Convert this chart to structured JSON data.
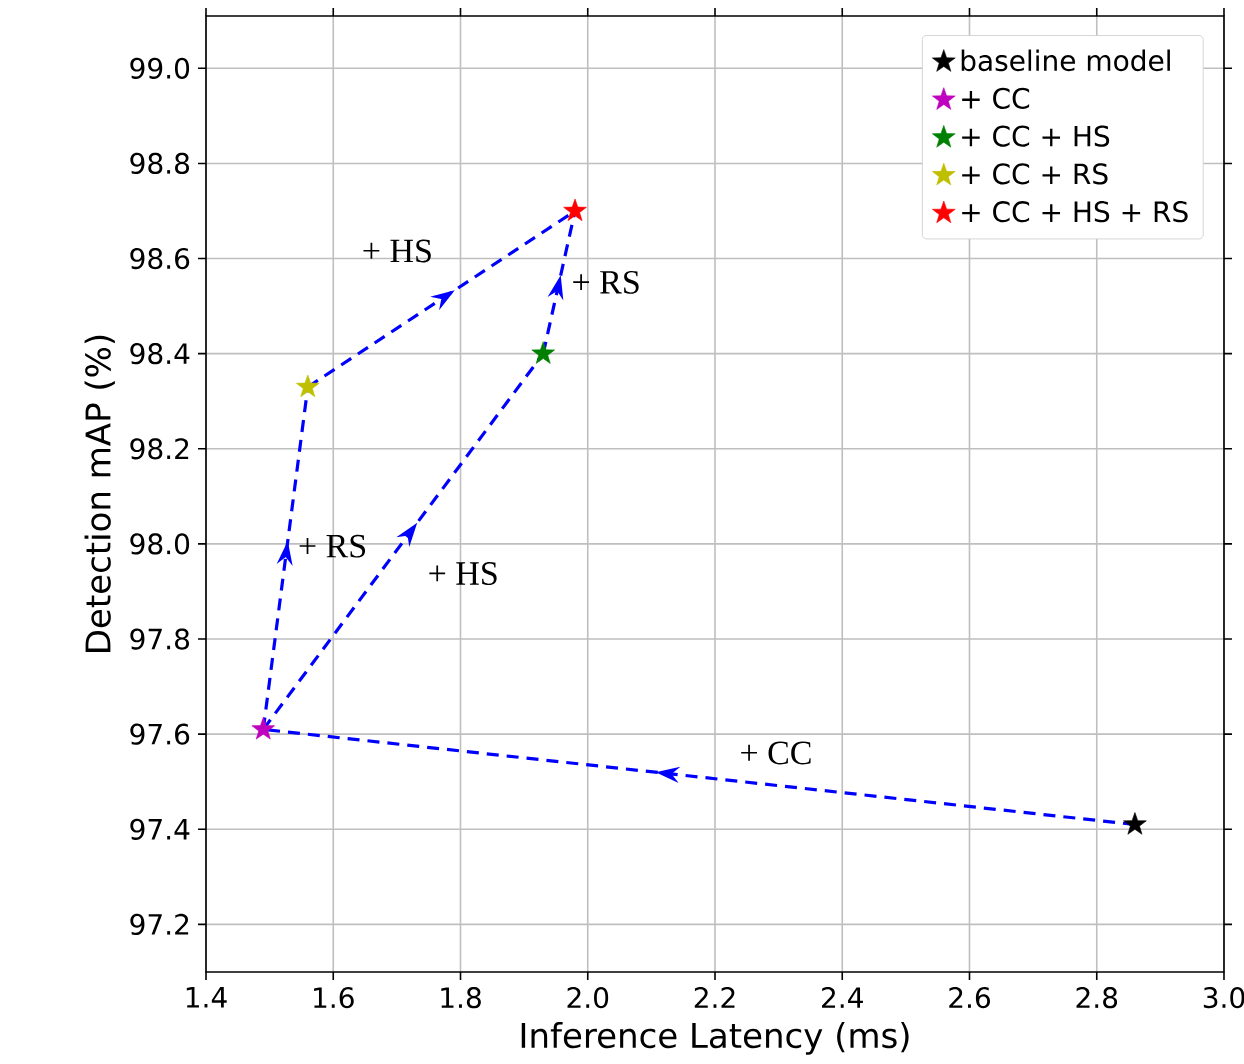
{
  "chart_data": {
    "type": "scatter",
    "xlabel": "Inference Latency (ms)",
    "ylabel": "Detection mAP (%)",
    "xlim": [
      1.4,
      3.0
    ],
    "ylim": [
      97.1,
      99.11
    ],
    "xticks": [
      1.4,
      1.6,
      1.8,
      {
        "value": 2,
        "label": "2.0"
      },
      2.2,
      2.4,
      2.6,
      2.8,
      {
        "value": 3,
        "label": "3.0"
      }
    ],
    "yticks": [
      97.2,
      97.4,
      97.6,
      97.8,
      {
        "value": 98,
        "label": "98.0"
      },
      98.2,
      98.4,
      98.6,
      98.8,
      {
        "value": 99,
        "label": "99.0"
      }
    ],
    "grid": true,
    "legend": "top right",
    "marker": "star",
    "series": [
      {
        "type": "line",
        "color": "#0000ff",
        "line_style": "dashed",
        "marker": "none",
        "x": [
          2.86,
          1.49
        ],
        "values": [
          97.41,
          97.61
        ]
      },
      {
        "type": "line",
        "color": "#0000ff",
        "line_style": "dashed",
        "marker": "none",
        "x": [
          1.49,
          1.93
        ],
        "values": [
          97.61,
          98.4
        ]
      },
      {
        "type": "line",
        "color": "#0000ff",
        "line_style": "dashed",
        "marker": "none",
        "x": [
          1.49,
          1.56
        ],
        "values": [
          97.61,
          98.33
        ]
      },
      {
        "type": "line",
        "color": "#0000ff",
        "line_style": "dashed",
        "marker": "none",
        "x": [
          1.56,
          1.98
        ],
        "values": [
          98.33,
          98.7
        ]
      },
      {
        "type": "line",
        "color": "#0000ff",
        "line_style": "dashed",
        "marker": "none",
        "x": [
          1.93,
          1.98
        ],
        "values": [
          98.4,
          98.7
        ]
      },
      {
        "name": "baseline model",
        "color": "#000000",
        "x": [
          2.86
        ],
        "values": [
          97.41
        ]
      },
      {
        "name": "+ CC",
        "color": "#bf00bf",
        "x": [
          1.49
        ],
        "values": [
          97.61
        ]
      },
      {
        "name": "+ CC + HS",
        "color": "#008000",
        "x": [
          1.93
        ],
        "values": [
          98.4
        ]
      },
      {
        "name": "+ CC + RS",
        "color": "#bfbf00",
        "x": [
          1.56
        ],
        "values": [
          98.33
        ]
      },
      {
        "name": "+ CC + HS + RS",
        "color": "#ff0000",
        "x": [
          1.98
        ],
        "values": [
          98.7
        ]
      }
    ],
    "annotations": [
      "+ CC",
      "+ HS",
      "+ RS",
      "+ HS",
      "+ RS"
    ]
  }
}
